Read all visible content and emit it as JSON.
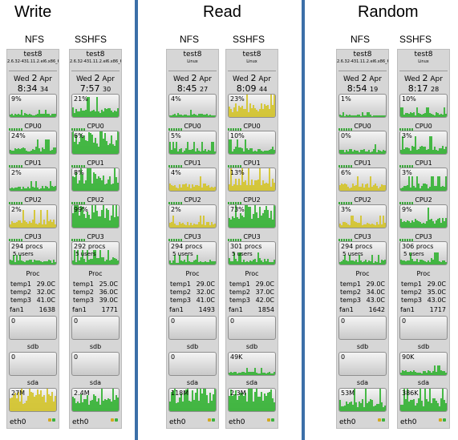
{
  "sections": [
    {
      "title": "Write",
      "cols": [
        "NFS",
        "SSHFS"
      ]
    },
    {
      "title": "Read",
      "cols": [
        "NFS",
        "SSHFS"
      ]
    },
    {
      "title": "Random",
      "cols": [
        "NFS",
        "SSHFS"
      ]
    }
  ],
  "colors": {
    "divider": "#3c6fa8",
    "graph_green": "#33b233",
    "graph_yellow": "#d4c42a"
  },
  "strips": [
    {
      "host": "test8",
      "kernel": "2.6.32-431.11.2.el6.x86_64",
      "day": "Wed",
      "date": "2",
      "month": "Apr",
      "time": "8:34",
      "sec": "34",
      "cpu": "9%",
      "cpu0": "24%",
      "cpu1": "2%",
      "cpu2": "2%",
      "procs": "294 procs",
      "users": "5 users",
      "temps": [
        [
          "temp1",
          "29.0C"
        ],
        [
          "temp2",
          "32.0C"
        ],
        [
          "temp3",
          "41.0C"
        ]
      ],
      "fan": "1638",
      "net": "0",
      "sdb": "0",
      "sda": "27M",
      "labels": [
        "CPU0",
        "CPU1",
        "CPU2",
        "CPU3",
        "Proc",
        "fan1",
        "sdb",
        "sda",
        "eth0"
      ]
    },
    {
      "host": "test8",
      "kernel": "2.6.32-431.11.2.el6.x86_64",
      "day": "Wed",
      "date": "2",
      "month": "Apr",
      "time": "7:57",
      "sec": "30",
      "cpu": "21%",
      "cpu0": "6%",
      "cpu1": "8%",
      "cpu2": "99%",
      "procs": "292 procs",
      "users": "5 users",
      "temps": [
        [
          "temp1",
          "25.0C"
        ],
        [
          "temp2",
          "36.0C"
        ],
        [
          "temp3",
          "39.0C"
        ]
      ],
      "fan": "1771",
      "net": "0",
      "sdb": "0",
      "sda": "2.4M",
      "labels": [
        "CPU0",
        "CPU1",
        "CPU2",
        "CPU3",
        "Proc",
        "fan1",
        "sdb",
        "sda",
        "eth0"
      ]
    },
    {
      "host": "test8",
      "kernel": "Linux",
      "day": "Wed",
      "date": "2",
      "month": "Apr",
      "time": "8:45",
      "sec": "27",
      "cpu": "4%",
      "cpu0": "5%",
      "cpu1": "4%",
      "cpu2": "2%",
      "procs": "294 procs",
      "users": "5 users",
      "temps": [
        [
          "temp1",
          "29.0C"
        ],
        [
          "temp2",
          "32.0C"
        ],
        [
          "temp3",
          "41.0C"
        ]
      ],
      "fan": "1493",
      "net": "0",
      "sdb": "0",
      "sda": "118M",
      "labels": [
        "CPU0",
        "CPU1",
        "CPU2",
        "CPU3",
        "Proc",
        "fan1",
        "sdb",
        "sda",
        "eth0"
      ]
    },
    {
      "host": "test8",
      "kernel": "Linux",
      "day": "Wed",
      "date": "2",
      "month": "Apr",
      "time": "8:09",
      "sec": "44",
      "cpu": "23%",
      "cpu0": "10%",
      "cpu1": "13%",
      "cpu2": "73%",
      "procs": "301 procs",
      "users": "5 users",
      "temps": [
        [
          "temp1",
          "29.0C"
        ],
        [
          "temp2",
          "37.0C"
        ],
        [
          "temp3",
          "42.0C"
        ]
      ],
      "fan": "1854",
      "net": "0",
      "sdb": "49K",
      "sda": "2.3M",
      "labels": [
        "CPU0",
        "CPU1",
        "CPU2",
        "CPU3",
        "Proc",
        "fan1",
        "sdb",
        "sda",
        "eth0"
      ]
    },
    {
      "host": "test8",
      "kernel": "2.6.32-431.11.2.el6.x86_64",
      "day": "Wed",
      "date": "2",
      "month": "Apr",
      "time": "8:54",
      "sec": "19",
      "cpu": "1%",
      "cpu0": "0%",
      "cpu1": "6%",
      "cpu2": "3%",
      "procs": "294 procs",
      "users": "5 users",
      "temps": [
        [
          "temp1",
          "29.0C"
        ],
        [
          "temp2",
          "34.0C"
        ],
        [
          "temp3",
          "43.0C"
        ]
      ],
      "fan": "1642",
      "net": "0",
      "sdb": "0",
      "sda": "53M",
      "labels": [
        "CPU0",
        "CPU1",
        "CPU2",
        "CPU3",
        "Proc",
        "fan1",
        "sdb",
        "sda",
        "eth0"
      ]
    },
    {
      "host": "test8",
      "kernel": "Linux",
      "day": "Wed",
      "date": "2",
      "month": "Apr",
      "time": "8:17",
      "sec": "28",
      "cpu": "10%",
      "cpu0": "3%",
      "cpu1": "3%",
      "cpu2": "9%",
      "procs": "306 procs",
      "users": "5 users",
      "temps": [
        [
          "temp1",
          "29.0C"
        ],
        [
          "temp2",
          "35.0C"
        ],
        [
          "temp3",
          "43.0C"
        ]
      ],
      "fan": "1717",
      "net": "0",
      "sdb": "90K",
      "sda": "386K",
      "labels": [
        "CPU0",
        "CPU1",
        "CPU2",
        "CPU3",
        "Proc",
        "fan1",
        "sdb",
        "sda",
        "eth0"
      ]
    }
  ]
}
